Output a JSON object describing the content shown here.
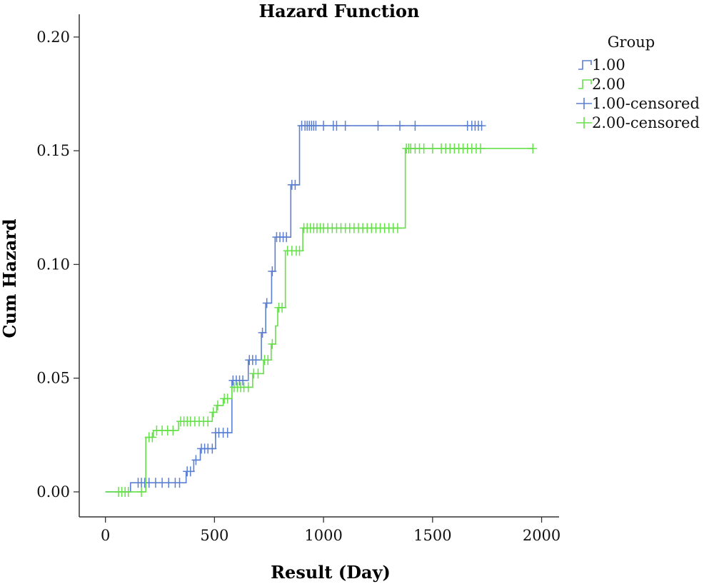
{
  "chart_data": {
    "type": "line",
    "title": "Hazard Function",
    "xlabel": "Result (Day)",
    "ylabel": "Cum Hazard",
    "xlim": [
      -120,
      2080
    ],
    "ylim": [
      -0.011,
      0.21
    ],
    "x_ticks": [
      0,
      500,
      1000,
      1500,
      2000
    ],
    "x_tick_labels": [
      "0",
      "500",
      "1000",
      "1500",
      "2000"
    ],
    "y_ticks": [
      0.0,
      0.05,
      0.1,
      0.15,
      0.2
    ],
    "y_tick_labels": [
      "0.00",
      "0.05",
      "0.10",
      "0.15",
      "0.20"
    ],
    "grid": false,
    "legend": {
      "title": "Group",
      "position": "top-right",
      "entries": [
        {
          "label": "1.00",
          "symbol": "step",
          "color": "#5b7fd1"
        },
        {
          "label": "2.00",
          "symbol": "step",
          "color": "#66e04a"
        },
        {
          "label": "1.00-censored",
          "symbol": "plus",
          "color": "#5b7fd1"
        },
        {
          "label": "2.00-censored",
          "symbol": "plus",
          "color": "#66e04a"
        }
      ]
    },
    "series": [
      {
        "name": "1.00",
        "color": "#5b7fd1",
        "steps": [
          [
            0,
            0.0
          ],
          [
            110,
            0.0
          ],
          [
            115,
            0.004
          ],
          [
            365,
            0.004
          ],
          [
            370,
            0.009
          ],
          [
            405,
            0.014
          ],
          [
            435,
            0.019
          ],
          [
            500,
            0.019
          ],
          [
            505,
            0.026
          ],
          [
            575,
            0.026
          ],
          [
            580,
            0.049
          ],
          [
            650,
            0.049
          ],
          [
            655,
            0.058
          ],
          [
            710,
            0.058
          ],
          [
            715,
            0.07
          ],
          [
            735,
            0.083
          ],
          [
            762,
            0.097
          ],
          [
            778,
            0.112
          ],
          [
            845,
            0.112
          ],
          [
            850,
            0.135
          ],
          [
            885,
            0.135
          ],
          [
            890,
            0.161
          ],
          [
            1730,
            0.161
          ]
        ],
        "censored": [
          [
            150,
            0.004
          ],
          [
            165,
            0.004
          ],
          [
            180,
            0.004
          ],
          [
            200,
            0.004
          ],
          [
            230,
            0.004
          ],
          [
            260,
            0.004
          ],
          [
            290,
            0.004
          ],
          [
            320,
            0.004
          ],
          [
            340,
            0.004
          ],
          [
            375,
            0.009
          ],
          [
            390,
            0.009
          ],
          [
            415,
            0.014
          ],
          [
            440,
            0.019
          ],
          [
            455,
            0.019
          ],
          [
            470,
            0.019
          ],
          [
            490,
            0.019
          ],
          [
            505,
            0.026
          ],
          [
            520,
            0.026
          ],
          [
            540,
            0.026
          ],
          [
            560,
            0.026
          ],
          [
            585,
            0.049
          ],
          [
            600,
            0.049
          ],
          [
            615,
            0.049
          ],
          [
            630,
            0.049
          ],
          [
            660,
            0.058
          ],
          [
            675,
            0.058
          ],
          [
            690,
            0.058
          ],
          [
            720,
            0.07
          ],
          [
            740,
            0.083
          ],
          [
            765,
            0.097
          ],
          [
            785,
            0.112
          ],
          [
            800,
            0.112
          ],
          [
            815,
            0.112
          ],
          [
            830,
            0.112
          ],
          [
            855,
            0.135
          ],
          [
            870,
            0.135
          ],
          [
            900,
            0.161
          ],
          [
            915,
            0.161
          ],
          [
            925,
            0.161
          ],
          [
            935,
            0.161
          ],
          [
            945,
            0.161
          ],
          [
            955,
            0.161
          ],
          [
            965,
            0.161
          ],
          [
            1000,
            0.161
          ],
          [
            1045,
            0.161
          ],
          [
            1060,
            0.161
          ],
          [
            1100,
            0.161
          ],
          [
            1250,
            0.161
          ],
          [
            1350,
            0.161
          ],
          [
            1420,
            0.161
          ],
          [
            1660,
            0.161
          ],
          [
            1680,
            0.161
          ],
          [
            1695,
            0.161
          ],
          [
            1710,
            0.161
          ],
          [
            1725,
            0.161
          ]
        ]
      },
      {
        "name": "2.00",
        "color": "#66e04a",
        "steps": [
          [
            0,
            0.0
          ],
          [
            180,
            0.0
          ],
          [
            185,
            0.024
          ],
          [
            215,
            0.024
          ],
          [
            220,
            0.027
          ],
          [
            330,
            0.027
          ],
          [
            335,
            0.031
          ],
          [
            485,
            0.031
          ],
          [
            490,
            0.035
          ],
          [
            505,
            0.035
          ],
          [
            510,
            0.038
          ],
          [
            535,
            0.038
          ],
          [
            540,
            0.041
          ],
          [
            575,
            0.041
          ],
          [
            580,
            0.046
          ],
          [
            670,
            0.046
          ],
          [
            675,
            0.052
          ],
          [
            720,
            0.052
          ],
          [
            725,
            0.058
          ],
          [
            755,
            0.058
          ],
          [
            760,
            0.065
          ],
          [
            780,
            0.073
          ],
          [
            790,
            0.081
          ],
          [
            820,
            0.081
          ],
          [
            825,
            0.106
          ],
          [
            900,
            0.106
          ],
          [
            905,
            0.116
          ],
          [
            1370,
            0.116
          ],
          [
            1375,
            0.151
          ],
          [
            1965,
            0.151
          ]
        ],
        "censored": [
          [
            60,
            0.0
          ],
          [
            75,
            0.0
          ],
          [
            90,
            0.0
          ],
          [
            105,
            0.0
          ],
          [
            165,
            0.0
          ],
          [
            200,
            0.024
          ],
          [
            215,
            0.024
          ],
          [
            235,
            0.027
          ],
          [
            260,
            0.027
          ],
          [
            285,
            0.027
          ],
          [
            310,
            0.027
          ],
          [
            345,
            0.031
          ],
          [
            360,
            0.031
          ],
          [
            375,
            0.031
          ],
          [
            390,
            0.031
          ],
          [
            410,
            0.031
          ],
          [
            430,
            0.031
          ],
          [
            450,
            0.031
          ],
          [
            470,
            0.031
          ],
          [
            495,
            0.035
          ],
          [
            515,
            0.038
          ],
          [
            545,
            0.041
          ],
          [
            560,
            0.041
          ],
          [
            590,
            0.046
          ],
          [
            605,
            0.046
          ],
          [
            620,
            0.046
          ],
          [
            635,
            0.046
          ],
          [
            655,
            0.046
          ],
          [
            680,
            0.052
          ],
          [
            700,
            0.052
          ],
          [
            730,
            0.058
          ],
          [
            745,
            0.058
          ],
          [
            765,
            0.065
          ],
          [
            795,
            0.081
          ],
          [
            810,
            0.081
          ],
          [
            835,
            0.106
          ],
          [
            855,
            0.106
          ],
          [
            875,
            0.106
          ],
          [
            890,
            0.106
          ],
          [
            910,
            0.116
          ],
          [
            925,
            0.116
          ],
          [
            940,
            0.116
          ],
          [
            955,
            0.116
          ],
          [
            970,
            0.116
          ],
          [
            985,
            0.116
          ],
          [
            1000,
            0.116
          ],
          [
            1020,
            0.116
          ],
          [
            1040,
            0.116
          ],
          [
            1060,
            0.116
          ],
          [
            1080,
            0.116
          ],
          [
            1100,
            0.116
          ],
          [
            1120,
            0.116
          ],
          [
            1140,
            0.116
          ],
          [
            1160,
            0.116
          ],
          [
            1180,
            0.116
          ],
          [
            1200,
            0.116
          ],
          [
            1220,
            0.116
          ],
          [
            1240,
            0.116
          ],
          [
            1260,
            0.116
          ],
          [
            1280,
            0.116
          ],
          [
            1300,
            0.116
          ],
          [
            1320,
            0.116
          ],
          [
            1340,
            0.116
          ],
          [
            1380,
            0.151
          ],
          [
            1390,
            0.151
          ],
          [
            1400,
            0.151
          ],
          [
            1420,
            0.151
          ],
          [
            1440,
            0.151
          ],
          [
            1460,
            0.151
          ],
          [
            1500,
            0.151
          ],
          [
            1540,
            0.151
          ],
          [
            1560,
            0.151
          ],
          [
            1580,
            0.151
          ],
          [
            1600,
            0.151
          ],
          [
            1620,
            0.151
          ],
          [
            1640,
            0.151
          ],
          [
            1660,
            0.151
          ],
          [
            1680,
            0.151
          ],
          [
            1700,
            0.151
          ],
          [
            1720,
            0.151
          ],
          [
            1960,
            0.151
          ]
        ]
      }
    ]
  }
}
